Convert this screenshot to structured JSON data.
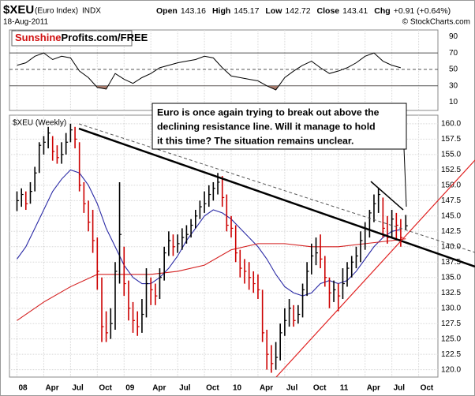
{
  "header": {
    "symbol": "$XEU",
    "name": "(Euro Index)",
    "exchange": "INDX",
    "date": "18-Aug-2011",
    "quote": [
      [
        "Open",
        "143.16"
      ],
      [
        "High",
        "145.17"
      ],
      [
        "Low",
        "142.72"
      ],
      [
        "Close",
        "143.41"
      ],
      [
        "Chg",
        "+0.91 (+0.64%)"
      ]
    ],
    "source": "© StockCharts.com"
  },
  "logo": {
    "part1": "Sunshine",
    "part2": "Profits.com/FREE"
  },
  "chart_data": [
    {
      "type": "line",
      "color": "#000000",
      "oversold_color": "#a57a6c",
      "overbought": 70,
      "midline": 50,
      "oversold": 30,
      "ylim": [
        0,
        98
      ],
      "yticks": [
        90,
        70,
        50,
        30,
        10
      ],
      "x": [
        2008,
        2008.083,
        2008.167,
        2008.25,
        2008.333,
        2008.417,
        2008.5,
        2008.583,
        2008.667,
        2008.75,
        2008.833,
        2008.917,
        2009,
        2009.083,
        2009.167,
        2009.25,
        2009.333,
        2009.417,
        2009.5,
        2009.583,
        2009.667,
        2009.75,
        2009.833,
        2009.917,
        2010,
        2010.083,
        2010.167,
        2010.25,
        2010.333,
        2010.417,
        2010.5,
        2010.583,
        2010.667,
        2010.75,
        2010.833,
        2010.917,
        2011,
        2011.083,
        2011.167,
        2011.25,
        2011.333,
        2011.417,
        2011.5,
        2011.583
      ],
      "values": [
        55,
        58,
        66,
        70,
        62,
        66,
        64,
        48,
        40,
        28,
        26,
        45,
        38,
        33,
        40,
        45,
        52,
        55,
        58,
        60,
        62,
        66,
        64,
        52,
        42,
        40,
        38,
        36,
        30,
        25,
        40,
        48,
        55,
        60,
        52,
        45,
        48,
        52,
        58,
        66,
        70,
        60,
        55,
        52
      ]
    },
    {
      "type": "hlc",
      "label": "$XEU (Weekly)",
      "up_color": "#000000",
      "down_color": "#cc0000",
      "annotation": [
        "Euro is once again trying to break out above the",
        "declining resistance line. Will it manage to hold",
        "it this time? The situation remains unclear."
      ],
      "xlim": [
        2007.93,
        2011.93
      ],
      "xticks": [
        {
          "value": 2008,
          "label": "08"
        },
        {
          "value": 2008.25,
          "label": "Apr"
        },
        {
          "value": 2008.5,
          "label": "Jul"
        },
        {
          "value": 2008.75,
          "label": "Oct"
        },
        {
          "value": 2009,
          "label": "09"
        },
        {
          "value": 2009.25,
          "label": "Apr"
        },
        {
          "value": 2009.5,
          "label": "Jul"
        },
        {
          "value": 2009.75,
          "label": "Oct"
        },
        {
          "value": 2010,
          "label": "10"
        },
        {
          "value": 2010.25,
          "label": "Apr"
        },
        {
          "value": 2010.5,
          "label": "Jul"
        },
        {
          "value": 2010.75,
          "label": "Oct"
        },
        {
          "value": 2011,
          "label": "11"
        },
        {
          "value": 2011.25,
          "label": "Apr"
        },
        {
          "value": 2011.5,
          "label": "Jul"
        },
        {
          "value": 2011.75,
          "label": "Oct"
        }
      ],
      "ylim": [
        118.8,
        161.4
      ],
      "yticks": [
        {
          "value": 160,
          "label": "160.0"
        },
        {
          "value": 157.5,
          "label": "157.5"
        },
        {
          "value": 155,
          "label": "155.0"
        },
        {
          "value": 152.5,
          "label": "152.5"
        },
        {
          "value": 150,
          "label": "150.0"
        },
        {
          "value": 147.5,
          "label": "147.5"
        },
        {
          "value": 145,
          "label": "145.0"
        },
        {
          "value": 142.5,
          "label": "142.5"
        },
        {
          "value": 140,
          "label": "140.0"
        },
        {
          "value": 137.5,
          "label": "137.5"
        },
        {
          "value": 135,
          "label": "135.0"
        },
        {
          "value": 132.5,
          "label": "132.5"
        },
        {
          "value": 130,
          "label": "130.0"
        },
        {
          "value": 127.5,
          "label": "127.5"
        },
        {
          "value": 125,
          "label": "125.0"
        },
        {
          "value": 122.5,
          "label": "122.5"
        },
        {
          "value": 120,
          "label": "120.0"
        }
      ],
      "x": [
        2008,
        2008.042,
        2008.083,
        2008.125,
        2008.167,
        2008.208,
        2008.25,
        2008.292,
        2008.333,
        2008.375,
        2008.417,
        2008.458,
        2008.5,
        2008.542,
        2008.583,
        2008.625,
        2008.667,
        2008.708,
        2008.75,
        2008.792,
        2008.833,
        2008.875,
        2008.917,
        2008.958,
        2009,
        2009.042,
        2009.083,
        2009.125,
        2009.167,
        2009.208,
        2009.25,
        2009.292,
        2009.333,
        2009.375,
        2009.417,
        2009.458,
        2009.5,
        2009.542,
        2009.583,
        2009.625,
        2009.667,
        2009.708,
        2009.75,
        2009.792,
        2009.833,
        2009.875,
        2009.917,
        2009.958,
        2010,
        2010.042,
        2010.083,
        2010.125,
        2010.167,
        2010.208,
        2010.25,
        2010.292,
        2010.333,
        2010.375,
        2010.417,
        2010.458,
        2010.5,
        2010.542,
        2010.583,
        2010.625,
        2010.667,
        2010.708,
        2010.75,
        2010.792,
        2010.833,
        2010.875,
        2010.917,
        2010.958,
        2011,
        2011.042,
        2011.083,
        2011.125,
        2011.167,
        2011.208,
        2011.25,
        2011.292,
        2011.333,
        2011.375,
        2011.417,
        2011.458,
        2011.5,
        2011.542,
        2011.583,
        2011.63
      ],
      "high": [
        149.0,
        149.5,
        149.0,
        150.5,
        153.0,
        157.0,
        158.0,
        159.5,
        158.0,
        156.5,
        157.0,
        158.5,
        160.0,
        159.5,
        157.0,
        150.5,
        147.5,
        146.0,
        141.5,
        135.0,
        129.5,
        130.0,
        137.5,
        150.5,
        140.0,
        134.5,
        131.0,
        129.5,
        131.5,
        136.5,
        135.0,
        134.0,
        136.5,
        140.0,
        142.5,
        142.0,
        142.0,
        143.0,
        143.5,
        144.5,
        146.0,
        147.5,
        149.0,
        150.0,
        150.5,
        152.0,
        151.5,
        148.5,
        145.0,
        143.5,
        139.5,
        138.0,
        137.5,
        136.0,
        135.5,
        133.0,
        126.5,
        124.0,
        124.5,
        127.5,
        130.0,
        131.5,
        130.5,
        130.5,
        134.0,
        137.5,
        140.5,
        141.5,
        142.0,
        138.5,
        135.0,
        134.5,
        134.0,
        136.5,
        137.5,
        138.5,
        140.0,
        142.5,
        144.0,
        146.0,
        148.5,
        149.5,
        148.0,
        145.0,
        146.0,
        145.5,
        144.5,
        145.17
      ],
      "low": [
        145.8,
        146.5,
        146.0,
        147.0,
        149.0,
        152.0,
        155.0,
        156.0,
        154.0,
        153.5,
        153.5,
        155.0,
        157.0,
        156.0,
        149.0,
        145.5,
        142.5,
        139.0,
        133.0,
        124.5,
        124.5,
        125.0,
        126.5,
        134.0,
        132.0,
        128.0,
        126.0,
        125.5,
        126.0,
        128.5,
        130.5,
        130.5,
        131.5,
        134.5,
        138.5,
        138.5,
        139.0,
        139.5,
        140.5,
        141.5,
        143.0,
        144.5,
        145.5,
        146.5,
        147.5,
        148.5,
        146.5,
        142.5,
        141.5,
        137.5,
        135.0,
        134.0,
        133.0,
        132.5,
        131.5,
        124.5,
        120.0,
        119.5,
        120.0,
        121.5,
        125.5,
        127.0,
        127.0,
        127.5,
        128.5,
        132.0,
        135.5,
        137.0,
        136.5,
        133.5,
        130.0,
        131.0,
        129.5,
        131.5,
        133.5,
        135.0,
        136.5,
        137.5,
        139.5,
        141.5,
        144.0,
        145.5,
        141.5,
        140.5,
        141.5,
        141.0,
        140.0,
        142.72
      ],
      "close": [
        147.5,
        148.5,
        147.0,
        149.0,
        152.0,
        156.5,
        157.0,
        158.5,
        155.5,
        154.5,
        155.0,
        157.0,
        159.0,
        157.5,
        150.0,
        147.0,
        144.0,
        141.0,
        136.0,
        127.0,
        126.0,
        127.5,
        136.0,
        142.0,
        134.0,
        130.0,
        128.0,
        127.0,
        129.0,
        134.0,
        133.0,
        132.0,
        135.0,
        139.0,
        141.0,
        140.0,
        140.5,
        141.5,
        142.0,
        143.5,
        145.0,
        146.5,
        147.0,
        148.5,
        149.5,
        150.5,
        148.0,
        143.5,
        143.0,
        139.0,
        136.5,
        136.0,
        135.0,
        134.0,
        133.0,
        126.0,
        122.5,
        121.0,
        122.0,
        126.0,
        128.0,
        130.0,
        128.0,
        129.0,
        133.0,
        136.0,
        138.5,
        139.0,
        138.0,
        135.0,
        132.5,
        133.0,
        132.0,
        134.0,
        136.5,
        137.5,
        138.5,
        141.0,
        143.0,
        145.5,
        147.0,
        148.5,
        143.0,
        141.5,
        144.5,
        143.5,
        141.5,
        143.41
      ],
      "overlays": [
        {
          "color": "#2b2ba6",
          "x": [
            2008,
            2008.083,
            2008.167,
            2008.25,
            2008.333,
            2008.417,
            2008.5,
            2008.583,
            2008.667,
            2008.75,
            2008.833,
            2008.917,
            2009,
            2009.083,
            2009.167,
            2009.25,
            2009.333,
            2009.417,
            2009.5,
            2009.583,
            2009.667,
            2009.75,
            2009.833,
            2009.917,
            2010,
            2010.083,
            2010.167,
            2010.25,
            2010.333,
            2010.417,
            2010.5,
            2010.583,
            2010.667,
            2010.75,
            2010.833,
            2010.917,
            2011,
            2011.083,
            2011.167,
            2011.25,
            2011.333,
            2011.417,
            2011.5,
            2011.583
          ],
          "values": [
            138,
            140,
            143,
            146,
            149,
            151,
            152.5,
            152,
            150,
            147,
            143,
            140,
            137,
            135,
            134,
            134,
            135,
            136.5,
            138.5,
            141,
            143,
            145,
            146,
            145.5,
            144.5,
            143,
            141.5,
            140,
            138,
            135.5,
            133.5,
            132.5,
            132,
            132.5,
            134,
            134.5,
            134,
            134.5,
            136,
            138,
            140,
            141.5,
            142.5,
            142.8
          ]
        },
        {
          "color": "#d42020",
          "x": [
            2008,
            2008.25,
            2008.5,
            2008.75,
            2009,
            2009.25,
            2009.5,
            2009.75,
            2010,
            2010.25,
            2010.5,
            2010.75,
            2011,
            2011.25,
            2011.5,
            2011.63
          ],
          "values": [
            128,
            131,
            133.5,
            135.5,
            135.5,
            135.5,
            136,
            137,
            139.5,
            140.5,
            140.5,
            140,
            140,
            140.5,
            141,
            141.3
          ]
        }
      ]
    }
  ]
}
